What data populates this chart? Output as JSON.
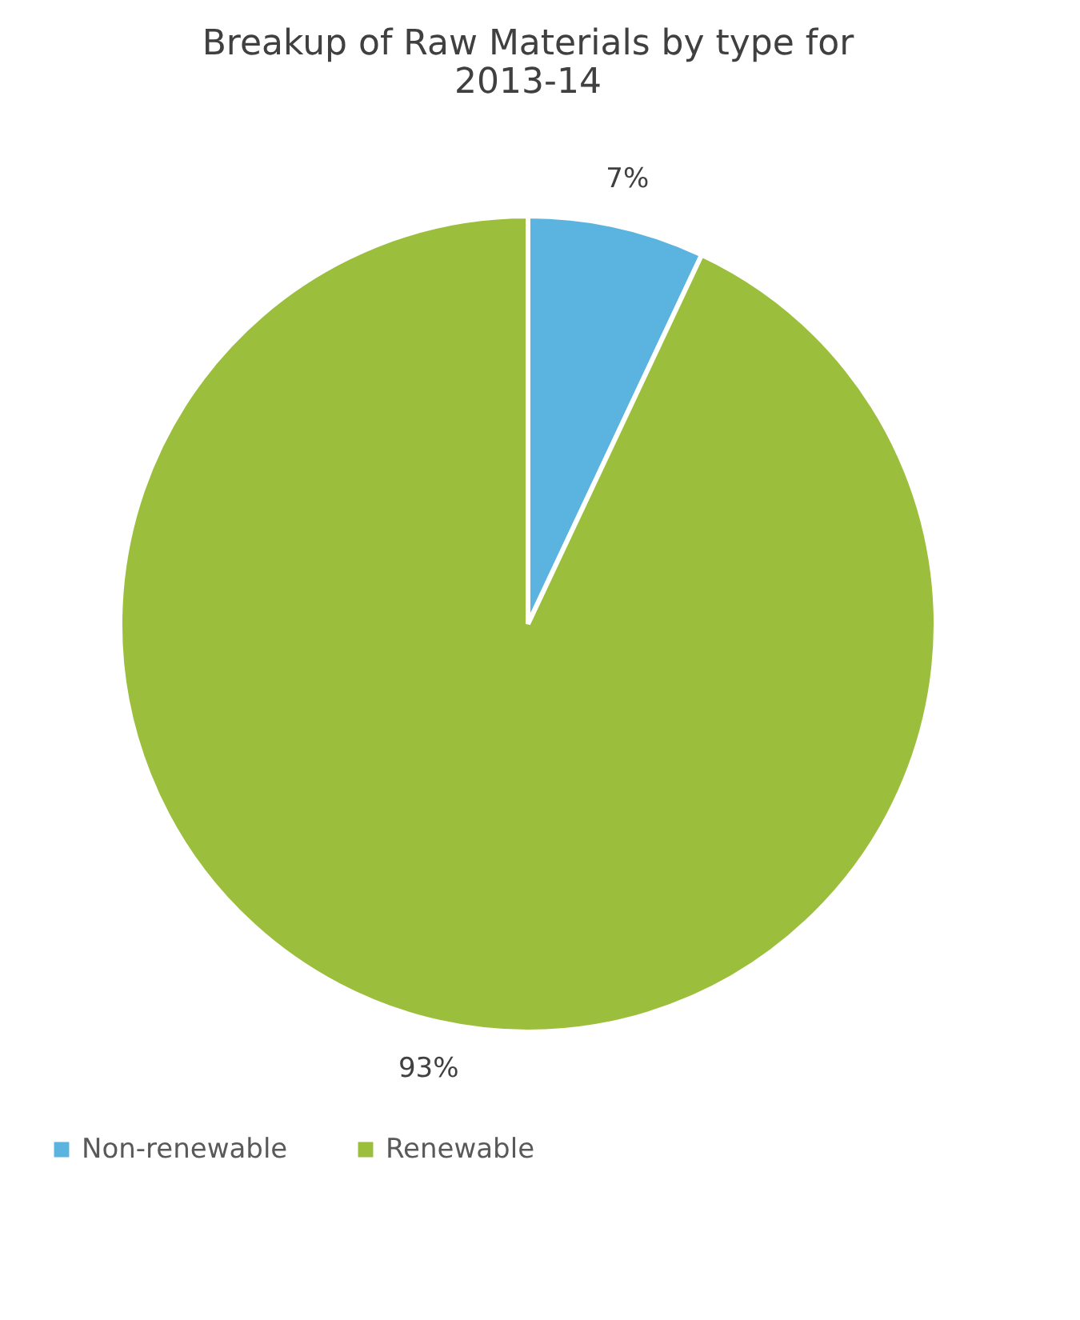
{
  "chart_data": {
    "type": "pie",
    "title": "Breakup of Raw Materials by type for 2013-14",
    "categories": [
      "Non-renewable",
      "Renewable"
    ],
    "values": [
      7,
      93
    ],
    "colors": [
      "#5bb4e0",
      "#9bbf3c"
    ],
    "value_labels": [
      "7%",
      "93%"
    ],
    "legend": "bottom"
  }
}
